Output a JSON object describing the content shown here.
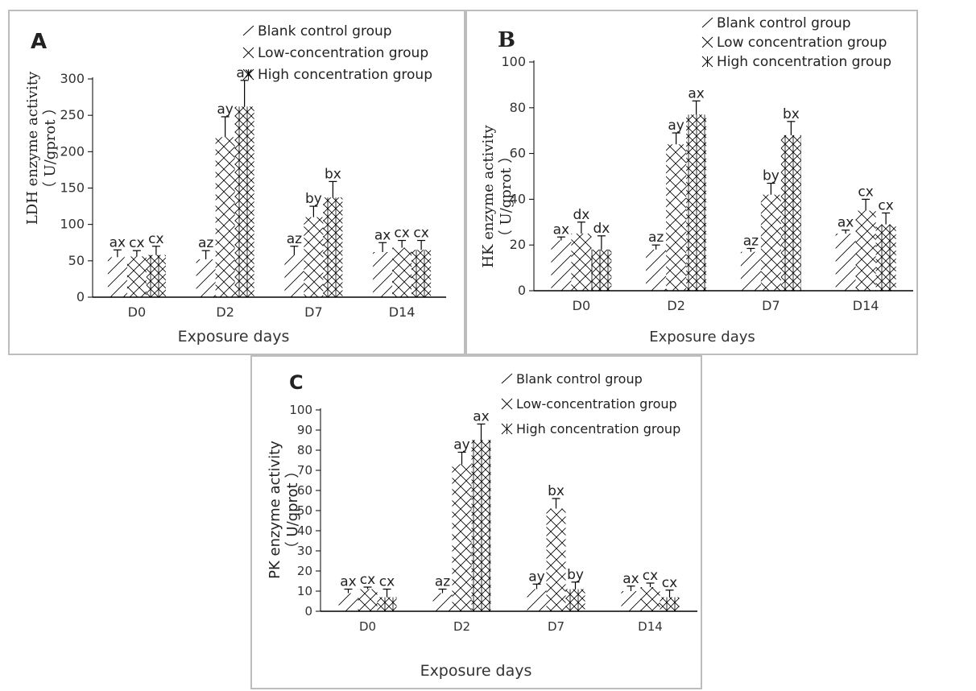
{
  "patterns": {
    "Blank control group": "fwd",
    "Low-concentration group": "cross",
    "Low concentration group": "cross",
    "High concentration group": "crossv"
  },
  "colors": {
    "ink": "#000000",
    "axis": "#000000",
    "tick_text": "#333333",
    "border": "#bdbdbd"
  },
  "chart_data": [
    {
      "panel": "A",
      "type": "bar",
      "title": "",
      "xlabel": "Exposure days",
      "ylabel_main": "LDH enzyme activity",
      "ylabel_unit": "（ U/gprot ）",
      "ylim": [
        0,
        300
      ],
      "yticks": [
        "0",
        "50",
        "100",
        "150",
        "200",
        "250",
        "300"
      ],
      "categories": [
        "D0",
        "D2",
        "D7",
        "D14"
      ],
      "legend_position": "top-right",
      "grid": false,
      "series": [
        {
          "name": "Blank control group",
          "values": [
            55,
            52,
            58,
            62
          ],
          "errors": [
            10,
            12,
            12,
            13
          ],
          "letters": [
            "ax",
            "az",
            "az",
            "ax"
          ]
        },
        {
          "name": "Low-concentration group",
          "values": [
            56,
            220,
            110,
            68
          ],
          "errors": [
            8,
            28,
            15,
            10
          ],
          "letters": [
            "cx",
            "ay",
            "by",
            "cx"
          ]
        },
        {
          "name": "High concentration group",
          "values": [
            58,
            262,
            137,
            65
          ],
          "errors": [
            12,
            36,
            22,
            13
          ],
          "letters": [
            "cx",
            "ax",
            "bx",
            "cx"
          ]
        }
      ]
    },
    {
      "panel": "B",
      "type": "bar",
      "title": "",
      "xlabel": "Exposure days",
      "ylabel_main": "HK enzyme activity",
      "ylabel_unit": "（ U/gprot ）",
      "ylim": [
        0,
        100
      ],
      "yticks": [
        "0",
        "20",
        "40",
        "60",
        "80",
        "100"
      ],
      "categories": [
        "D0",
        "D2",
        "D7",
        "D14"
      ],
      "legend_position": "top-right",
      "grid": false,
      "series": [
        {
          "name": "Blank control group",
          "values": [
            22,
            18,
            17,
            25
          ],
          "errors": [
            1.5,
            2,
            1.5,
            1.5
          ],
          "letters": [
            "ax",
            "az",
            "az",
            "ax"
          ]
        },
        {
          "name": "Low concentration group",
          "values": [
            25,
            64,
            42,
            35
          ],
          "errors": [
            5,
            5,
            5,
            5
          ],
          "letters": [
            "dx",
            "ay",
            "by",
            "cx"
          ]
        },
        {
          "name": "High concentration group",
          "values": [
            18,
            77,
            68,
            29
          ],
          "errors": [
            6,
            6,
            6,
            5
          ],
          "letters": [
            "dx",
            "ax",
            "bx",
            "cx"
          ]
        }
      ]
    },
    {
      "panel": "C",
      "type": "bar",
      "title": "",
      "xlabel": "Exposure days",
      "ylabel_main": "PK enzyme activity",
      "ylabel_unit": "（ U/gprot ）",
      "ylim": [
        0,
        100
      ],
      "yticks": [
        "0",
        "10",
        "20",
        "30",
        "40",
        "50",
        "60",
        "70",
        "80",
        "90",
        "100"
      ],
      "categories": [
        "D0",
        "D2",
        "D7",
        "D14"
      ],
      "legend_position": "top-right",
      "grid": false,
      "series": [
        {
          "name": "Blank control group",
          "values": [
            9,
            9,
            11,
            10
          ],
          "errors": [
            2,
            2,
            2.5,
            2.5
          ],
          "letters": [
            "ax",
            "az",
            "ay",
            "ax"
          ]
        },
        {
          "name": "Low-concentration group",
          "values": [
            11,
            73,
            51,
            12
          ],
          "errors": [
            1,
            6,
            5,
            2
          ],
          "letters": [
            "cx",
            "ay",
            "bx",
            "cx"
          ]
        },
        {
          "name": "High concentration group",
          "values": [
            7,
            85,
            11,
            7
          ],
          "errors": [
            4,
            8,
            3.5,
            3.5
          ],
          "letters": [
            "cx",
            "ax",
            "by",
            "cx"
          ]
        }
      ]
    }
  ]
}
